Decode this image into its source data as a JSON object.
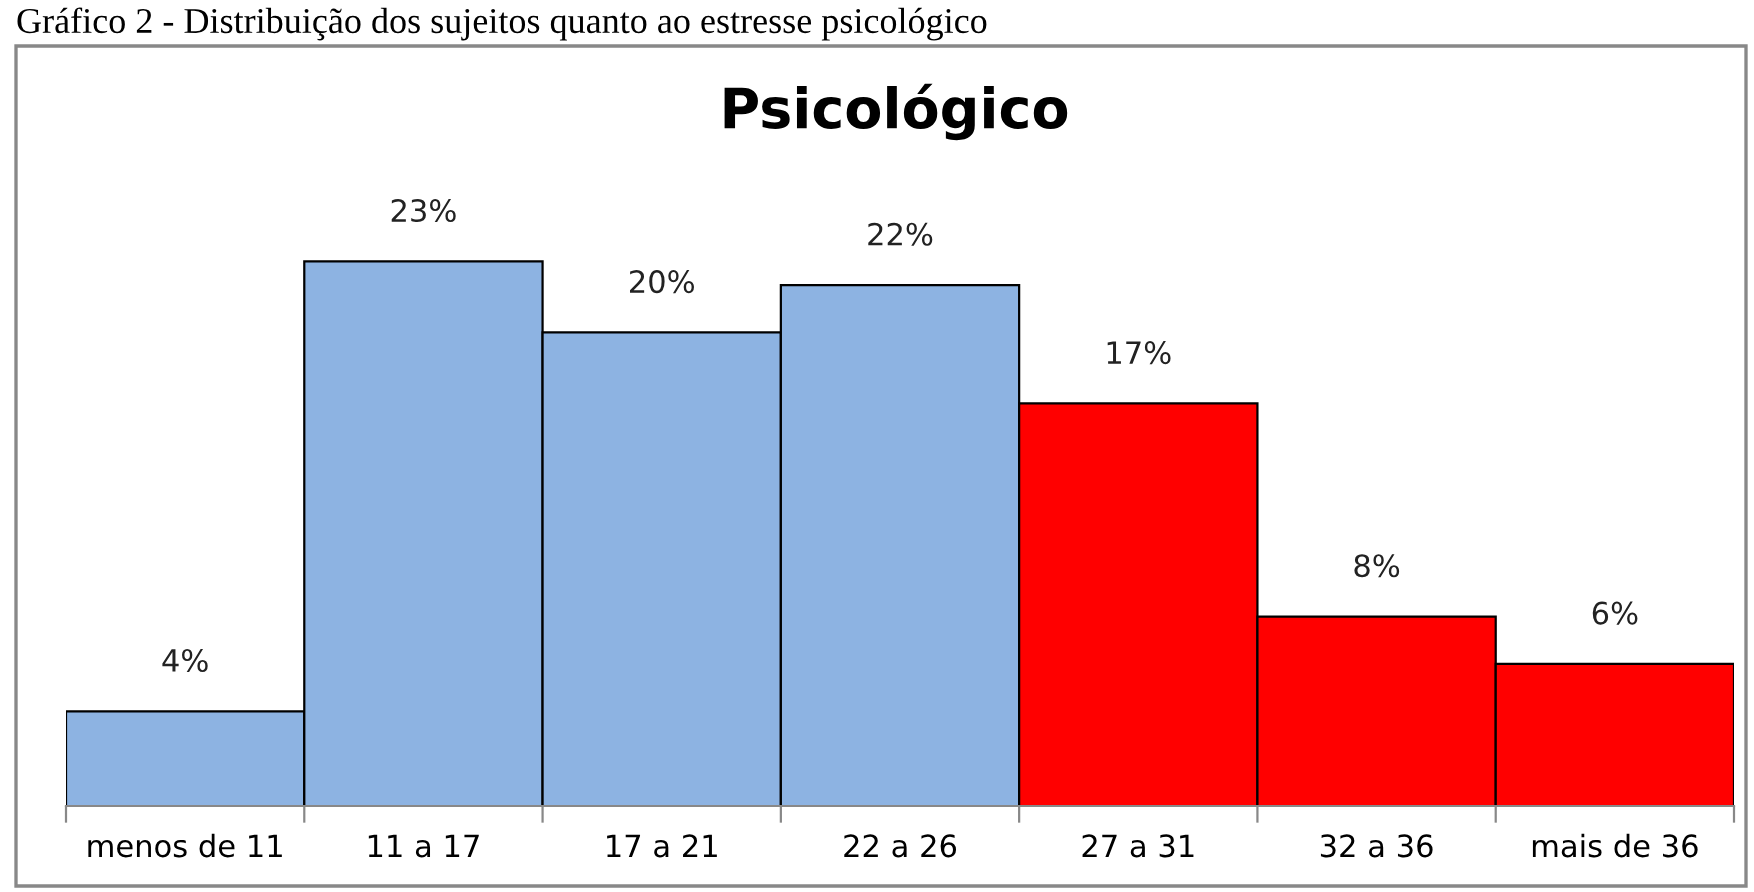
{
  "chart_data": {
    "type": "bar",
    "title": "Psicológico",
    "annotations": [
      "Gráfico 2 - Distribuição dos sujeitos quanto ao estresse psicológico"
    ],
    "categories": [
      "menos de 11",
      "11 a 17",
      "17 a 21",
      "22 a 26",
      "27 a 31",
      "32 a 36",
      "mais de 36"
    ],
    "values": [
      4,
      23,
      20,
      22,
      17,
      8,
      6
    ],
    "colors": [
      "#8db3e2",
      "#8db3e2",
      "#8db3e2",
      "#8db3e2",
      "#ff0000",
      "#ff0000",
      "#ff0000"
    ],
    "value_labels": [
      "4%",
      "23%",
      "20%",
      "22%",
      "17%",
      "8%",
      "6%"
    ],
    "grid": false
  }
}
